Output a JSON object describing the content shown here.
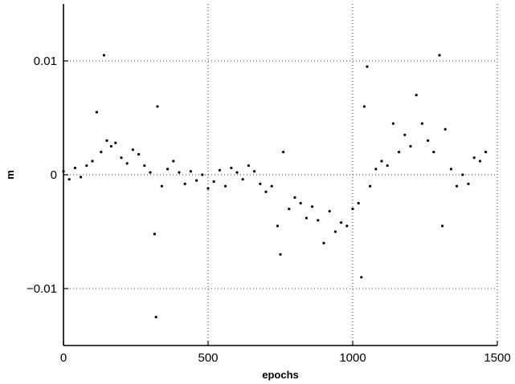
{
  "chart_data": {
    "type": "scatter",
    "title": "",
    "xlabel": "epochs",
    "ylabel": "m",
    "xlim": [
      0,
      1500
    ],
    "ylim": [
      -0.015,
      0.015
    ],
    "x_ticks": [
      0,
      500,
      1000,
      1500
    ],
    "x_tick_labels": [
      "0",
      "500",
      "1000",
      "1500"
    ],
    "y_ticks": [
      -0.01,
      0,
      0.01
    ],
    "y_tick_labels": [
      "−0.01",
      "0",
      "0.01"
    ],
    "grid": true,
    "marker": "dot",
    "series": [
      {
        "color": "#000000",
        "x": [
          0,
          20,
          40,
          60,
          80,
          100,
          115,
          130,
          140,
          150,
          165,
          180,
          200,
          220,
          240,
          260,
          280,
          300,
          315,
          320,
          325,
          340,
          360,
          380,
          400,
          420,
          440,
          460,
          480,
          500,
          520,
          540,
          560,
          580,
          600,
          620,
          640,
          660,
          680,
          700,
          720,
          740,
          750,
          760,
          780,
          800,
          820,
          840,
          860,
          880,
          900,
          920,
          940,
          960,
          980,
          1000,
          1020,
          1030,
          1040,
          1050,
          1060,
          1080,
          1100,
          1120,
          1140,
          1160,
          1180,
          1200,
          1220,
          1240,
          1260,
          1280,
          1300,
          1310,
          1320,
          1340,
          1360,
          1380,
          1400,
          1420,
          1440,
          1460
        ],
        "y": [
          0.0003,
          -0.0004,
          0.0006,
          -0.0002,
          0.0008,
          0.0012,
          0.0055,
          0.002,
          0.0105,
          0.003,
          0.0025,
          0.0028,
          0.0015,
          0.001,
          0.0022,
          0.0018,
          0.0008,
          0.0002,
          -0.0052,
          -0.0125,
          0.006,
          -0.001,
          0.0005,
          0.0012,
          0.0002,
          -0.0008,
          0.0003,
          -0.0005,
          0.0,
          -0.0012,
          -0.0006,
          0.0004,
          -0.001,
          0.0006,
          0.0002,
          -0.0004,
          0.0008,
          0.0003,
          -0.0008,
          -0.0015,
          -0.001,
          -0.0045,
          -0.007,
          0.002,
          -0.003,
          -0.002,
          -0.0025,
          -0.0038,
          -0.0028,
          -0.004,
          -0.006,
          -0.0032,
          -0.005,
          -0.0042,
          -0.0045,
          -0.003,
          -0.0025,
          -0.009,
          0.006,
          0.0095,
          -0.001,
          0.0005,
          0.0012,
          0.0008,
          0.0045,
          0.002,
          0.0035,
          0.0025,
          0.007,
          0.0045,
          0.003,
          0.002,
          0.0105,
          -0.0045,
          0.004,
          0.0005,
          -0.001,
          0.0,
          -0.0008,
          0.0015,
          0.0012,
          0.002
        ]
      }
    ]
  }
}
